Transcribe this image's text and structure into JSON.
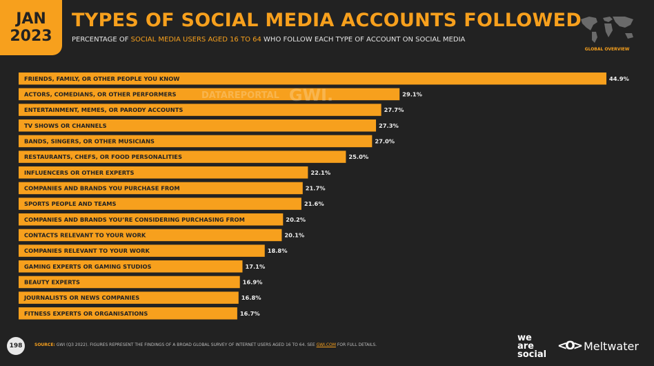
{
  "header": {
    "badge_month": "JAN",
    "badge_year": "2023",
    "title": "TYPES OF SOCIAL MEDIA ACCOUNTS FOLLOWED",
    "subtitle_pre": "PERCENTAGE OF",
    "subtitle_highlight": "SOCIAL MEDIA USERS AGED 16 TO 64",
    "subtitle_post": "WHO FOLLOW EACH TYPE OF ACCOUNT ON SOCIAL MEDIA",
    "overview_label": "GLOBAL OVERVIEW"
  },
  "watermark": {
    "left": "DATAREPORTAL",
    "right": "GWI."
  },
  "colors": {
    "bar": "#f7a01d",
    "background": "#222222",
    "accent": "#f7a01d"
  },
  "chart_data": {
    "type": "bar",
    "orientation": "horizontal",
    "categories": [
      "FRIENDS, FAMILY, OR OTHER PEOPLE YOU KNOW",
      "ACTORS, COMEDIANS, OR OTHER PERFORMERS",
      "ENTERTAINMENT, MEMES, OR PARODY ACCOUNTS",
      "TV SHOWS OR CHANNELS",
      "BANDS, SINGERS, OR OTHER MUSICIANS",
      "RESTAURANTS, CHEFS, OR FOOD PERSONALITIES",
      "INFLUENCERS OR OTHER EXPERTS",
      "COMPANIES AND BRANDS YOU PURCHASE FROM",
      "SPORTS PEOPLE AND TEAMS",
      "COMPANIES AND BRANDS YOU’RE CONSIDERING PURCHASING FROM",
      "CONTACTS RELEVANT TO YOUR WORK",
      "COMPANIES RELEVANT TO YOUR WORK",
      "GAMING EXPERTS OR GAMING STUDIOS",
      "BEAUTY EXPERTS",
      "JOURNALISTS OR NEWS COMPANIES",
      "FITNESS EXPERTS OR ORGANISATIONS"
    ],
    "values": [
      44.9,
      29.1,
      27.7,
      27.3,
      27.0,
      25.0,
      22.1,
      21.7,
      21.6,
      20.2,
      20.1,
      18.8,
      17.1,
      16.9,
      16.8,
      16.7
    ],
    "value_labels": [
      "44.9%",
      "29.1%",
      "27.7%",
      "27.3%",
      "27.0%",
      "25.0%",
      "22.1%",
      "21.7%",
      "21.6%",
      "20.2%",
      "20.1%",
      "18.8%",
      "17.1%",
      "16.9%",
      "16.8%",
      "16.7%"
    ],
    "xlim": [
      0,
      44.9
    ]
  },
  "footer": {
    "page_number": "198",
    "source_label": "SOURCE:",
    "source_text": "GWI (Q3 2022). FIGURES REPRESENT THE FINDINGS OF A BROAD GLOBAL SURVEY OF INTERNET USERS AGED 16 TO 64. SEE",
    "source_link": "GWI.COM",
    "source_tail": "FOR FULL DETAILS.",
    "brand_1_line1": "we",
    "brand_1_line2": "are",
    "brand_1_line3": "social",
    "brand_2": "Meltwater",
    "brand_2_icon": "meltwater-logo-icon"
  }
}
